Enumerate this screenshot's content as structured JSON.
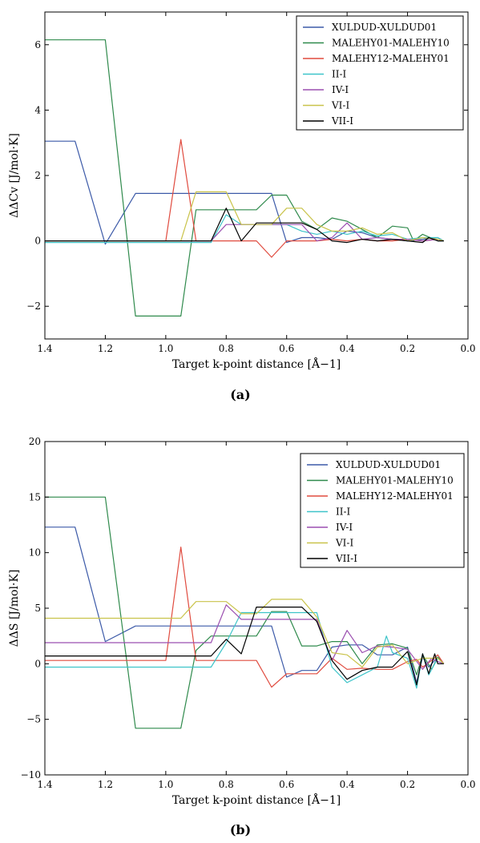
{
  "chart_data": [
    {
      "type": "line",
      "panel_label": "(a)",
      "xlabel": "Target k-point distance [Å−1]",
      "ylabel": "ΔΔCv [J/mol·K]",
      "xlim": [
        1.4,
        0.0
      ],
      "ylim": [
        -3,
        7
      ],
      "xticks": [
        "1.4",
        "1.2",
        "1.0",
        "0.8",
        "0.6",
        "0.4",
        "0.2",
        "0.0"
      ],
      "yticks": [
        "−2",
        "0",
        "2",
        "4",
        "6"
      ],
      "legend": "top-right",
      "series": [
        {
          "name": "XULDUD-XULDUD01",
          "color": "#3c5aa8",
          "x": [
            1.4,
            1.3,
            1.2,
            1.1,
            1.0,
            0.95,
            0.9,
            0.85,
            0.8,
            0.75,
            0.7,
            0.65,
            0.6,
            0.55,
            0.5,
            0.45,
            0.4,
            0.35,
            0.3,
            0.25,
            0.2,
            0.15,
            0.1,
            0.08
          ],
          "y": [
            3.05,
            3.05,
            -0.1,
            1.45,
            1.45,
            1.45,
            1.45,
            1.45,
            1.45,
            1.45,
            1.45,
            1.45,
            -0.05,
            0.1,
            0.1,
            0.05,
            0.3,
            0.25,
            0.1,
            0.05,
            0.0,
            0.05,
            0.1,
            0.0
          ]
        },
        {
          "name": "MALEHY01-MALEHY10",
          "color": "#2f8a4c",
          "x": [
            1.4,
            1.2,
            1.1,
            0.95,
            0.9,
            0.85,
            0.8,
            0.7,
            0.65,
            0.6,
            0.55,
            0.5,
            0.45,
            0.4,
            0.35,
            0.3,
            0.25,
            0.2,
            0.18,
            0.15,
            0.1,
            0.08
          ],
          "y": [
            6.15,
            6.15,
            -2.3,
            -2.3,
            0.95,
            0.95,
            0.95,
            0.95,
            1.4,
            1.4,
            0.6,
            0.35,
            0.7,
            0.6,
            0.35,
            0.1,
            0.45,
            0.4,
            0.0,
            0.2,
            0.0,
            0.0
          ]
        },
        {
          "name": "MALEHY12-MALEHY01",
          "color": "#e04b3f",
          "x": [
            1.4,
            1.0,
            0.95,
            0.9,
            0.85,
            0.8,
            0.7,
            0.65,
            0.6,
            0.55,
            0.5,
            0.45,
            0.4,
            0.35,
            0.3,
            0.25,
            0.2,
            0.15,
            0.1,
            0.08
          ],
          "y": [
            0.0,
            0.0,
            3.1,
            0.0,
            0.0,
            0.0,
            0.0,
            -0.5,
            0.0,
            0.0,
            0.0,
            0.05,
            0.0,
            0.05,
            0.0,
            0.0,
            0.05,
            0.0,
            0.05,
            0.0
          ]
        },
        {
          "name": "II-I",
          "color": "#3ec4c9",
          "x": [
            1.4,
            0.9,
            0.85,
            0.8,
            0.75,
            0.7,
            0.65,
            0.6,
            0.55,
            0.5,
            0.45,
            0.4,
            0.35,
            0.3,
            0.25,
            0.2,
            0.15,
            0.1,
            0.08
          ],
          "y": [
            -0.05,
            -0.05,
            -0.05,
            0.8,
            0.5,
            0.5,
            0.5,
            0.5,
            0.3,
            0.2,
            0.3,
            0.2,
            0.3,
            0.15,
            0.2,
            0.05,
            0.1,
            0.1,
            0.0
          ]
        },
        {
          "name": "IV-I",
          "color": "#9b4fb0",
          "x": [
            1.4,
            0.9,
            0.85,
            0.8,
            0.75,
            0.7,
            0.65,
            0.6,
            0.55,
            0.5,
            0.45,
            0.4,
            0.35,
            0.3,
            0.25,
            0.2,
            0.15,
            0.1,
            0.08
          ],
          "y": [
            0.0,
            0.0,
            0.0,
            0.5,
            0.5,
            0.5,
            0.5,
            0.5,
            0.5,
            0.0,
            0.1,
            0.55,
            0.05,
            0.1,
            0.05,
            0.05,
            0.0,
            0.05,
            0.0
          ]
        },
        {
          "name": "VI-I",
          "color": "#c9c34a",
          "x": [
            1.4,
            0.95,
            0.9,
            0.8,
            0.75,
            0.7,
            0.65,
            0.6,
            0.55,
            0.5,
            0.45,
            0.4,
            0.35,
            0.3,
            0.25,
            0.2,
            0.15,
            0.1,
            0.08
          ],
          "y": [
            0.0,
            0.0,
            1.5,
            1.5,
            0.5,
            0.5,
            0.5,
            1.0,
            1.0,
            0.5,
            0.3,
            0.3,
            0.4,
            0.2,
            0.25,
            0.0,
            0.1,
            0.05,
            0.0
          ]
        },
        {
          "name": "VII-I",
          "color": "#000000",
          "x": [
            1.4,
            0.9,
            0.85,
            0.8,
            0.75,
            0.7,
            0.65,
            0.6,
            0.55,
            0.5,
            0.45,
            0.4,
            0.35,
            0.3,
            0.25,
            0.2,
            0.15,
            0.13,
            0.1,
            0.08
          ],
          "y": [
            0.0,
            0.0,
            0.0,
            1.0,
            0.0,
            0.55,
            0.55,
            0.55,
            0.55,
            0.35,
            0.0,
            -0.05,
            0.05,
            0.0,
            0.05,
            0.0,
            -0.05,
            0.1,
            0.0,
            0.0
          ]
        }
      ]
    },
    {
      "type": "line",
      "panel_label": "(b)",
      "xlabel": "Target k-point distance [Å−1]",
      "ylabel": "ΔΔS [J/mol·K]",
      "xlim": [
        1.4,
        0.0
      ],
      "ylim": [
        -10,
        20
      ],
      "xticks": [
        "1.4",
        "1.2",
        "1.0",
        "0.8",
        "0.6",
        "0.4",
        "0.2",
        "0.0"
      ],
      "yticks": [
        "−10",
        "−5",
        "0",
        "5",
        "10",
        "15",
        "20"
      ],
      "legend": "top-right",
      "series": [
        {
          "name": "XULDUD-XULDUD01",
          "color": "#3c5aa8",
          "x": [
            1.4,
            1.3,
            1.2,
            1.1,
            1.0,
            0.9,
            0.8,
            0.7,
            0.65,
            0.6,
            0.55,
            0.5,
            0.45,
            0.4,
            0.35,
            0.3,
            0.25,
            0.2,
            0.17,
            0.15,
            0.13,
            0.1,
            0.08
          ],
          "y": [
            12.3,
            12.3,
            2.0,
            3.4,
            3.4,
            3.4,
            3.4,
            3.4,
            3.4,
            -1.2,
            -0.6,
            -0.6,
            1.5,
            1.7,
            1.7,
            0.8,
            0.8,
            1.5,
            -1.7,
            0.6,
            -0.3,
            0.6,
            0.0
          ]
        },
        {
          "name": "MALEHY01-MALEHY10",
          "color": "#2f8a4c",
          "x": [
            1.4,
            1.2,
            1.1,
            0.95,
            0.9,
            0.85,
            0.8,
            0.75,
            0.7,
            0.65,
            0.6,
            0.55,
            0.5,
            0.45,
            0.4,
            0.35,
            0.3,
            0.25,
            0.2,
            0.17,
            0.15,
            0.12,
            0.1,
            0.08
          ],
          "y": [
            15.0,
            15.0,
            -5.8,
            -5.8,
            1.2,
            2.5,
            2.5,
            2.5,
            2.5,
            4.7,
            4.7,
            1.6,
            1.6,
            2.0,
            2.0,
            0.0,
            1.7,
            1.8,
            1.4,
            -1.0,
            0.8,
            -0.5,
            0.6,
            0.0
          ]
        },
        {
          "name": "MALEHY12-MALEHY01",
          "color": "#e04b3f",
          "x": [
            1.4,
            1.0,
            0.95,
            0.9,
            0.85,
            0.8,
            0.7,
            0.65,
            0.6,
            0.55,
            0.5,
            0.45,
            0.4,
            0.35,
            0.3,
            0.25,
            0.2,
            0.17,
            0.15,
            0.12,
            0.1,
            0.08
          ],
          "y": [
            0.3,
            0.3,
            10.5,
            0.3,
            0.3,
            0.3,
            0.3,
            -2.1,
            -0.9,
            -0.9,
            -0.9,
            0.5,
            -0.5,
            -0.4,
            -0.5,
            -0.5,
            0.2,
            0.4,
            -0.3,
            0.3,
            0.8,
            0.0
          ]
        },
        {
          "name": "II-I",
          "color": "#3ec4c9",
          "x": [
            1.4,
            0.85,
            0.8,
            0.75,
            0.7,
            0.65,
            0.6,
            0.55,
            0.5,
            0.45,
            0.4,
            0.35,
            0.3,
            0.27,
            0.25,
            0.2,
            0.17,
            0.15,
            0.13,
            0.1,
            0.08
          ],
          "y": [
            -0.3,
            -0.3,
            1.9,
            4.6,
            4.6,
            4.6,
            4.6,
            4.6,
            4.6,
            -0.3,
            -1.7,
            -1.0,
            -0.3,
            2.5,
            1.0,
            0.5,
            -2.2,
            0.9,
            -1.0,
            0.5,
            0.0
          ]
        },
        {
          "name": "IV-I",
          "color": "#9b4fb0",
          "x": [
            1.4,
            0.85,
            0.8,
            0.75,
            0.7,
            0.65,
            0.6,
            0.55,
            0.5,
            0.45,
            0.4,
            0.35,
            0.3,
            0.25,
            0.2,
            0.15,
            0.12,
            0.1,
            0.08
          ],
          "y": [
            1.9,
            1.9,
            5.3,
            4.0,
            4.0,
            4.0,
            4.0,
            4.0,
            4.0,
            0.3,
            3.0,
            1.0,
            1.6,
            1.5,
            1.3,
            -0.5,
            0.5,
            0.2,
            0.0
          ]
        },
        {
          "name": "VI-I",
          "color": "#c9c34a",
          "x": [
            1.4,
            0.95,
            0.9,
            0.8,
            0.75,
            0.7,
            0.65,
            0.6,
            0.55,
            0.5,
            0.45,
            0.4,
            0.35,
            0.3,
            0.25,
            0.2,
            0.15,
            0.1,
            0.08
          ],
          "y": [
            4.1,
            4.1,
            5.6,
            5.6,
            4.5,
            4.5,
            5.8,
            5.8,
            5.8,
            4.2,
            1.0,
            0.8,
            -0.3,
            1.5,
            1.7,
            0.0,
            0.5,
            0.5,
            0.0
          ]
        },
        {
          "name": "VII-I",
          "color": "#000000",
          "x": [
            1.4,
            0.85,
            0.8,
            0.75,
            0.7,
            0.65,
            0.6,
            0.55,
            0.5,
            0.45,
            0.4,
            0.35,
            0.3,
            0.25,
            0.2,
            0.17,
            0.15,
            0.13,
            0.11,
            0.1,
            0.08
          ],
          "y": [
            0.7,
            0.7,
            2.2,
            0.9,
            5.1,
            5.1,
            5.1,
            5.1,
            3.8,
            0.3,
            -1.4,
            -0.6,
            -0.3,
            -0.3,
            1.1,
            -1.9,
            0.9,
            -0.9,
            0.9,
            0.0,
            0.0
          ]
        }
      ]
    }
  ]
}
